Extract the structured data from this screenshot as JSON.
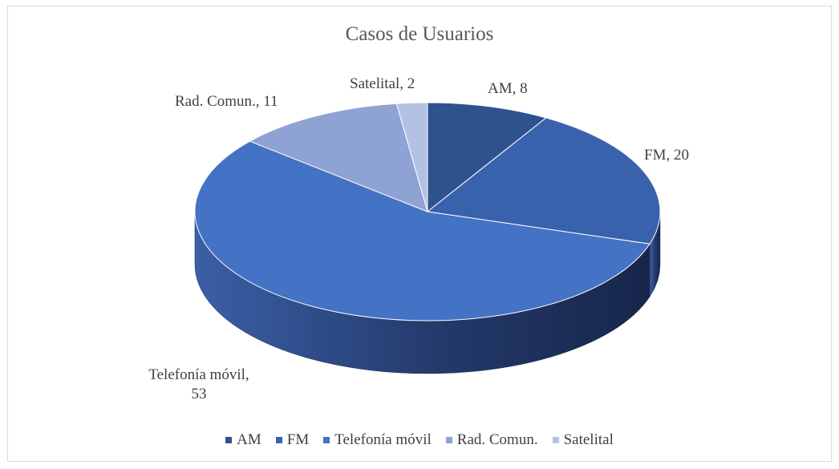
{
  "chart_data": {
    "type": "pie",
    "title": "Casos de Usuarios",
    "categories": [
      "AM",
      "FM",
      "Telefonía móvil",
      "Rad. Comun.",
      "Satelital"
    ],
    "values": [
      8,
      20,
      53,
      11,
      2
    ],
    "value_labels": [
      "AM, 8",
      "FM, 20",
      "Telefonía móvil, 53",
      "Rad. Comun., 11",
      "Satelital, 2"
    ],
    "colors": [
      "#2f528f",
      "#3962ad",
      "#4472c4",
      "#8fa2d4",
      "#b4c1e4"
    ],
    "legend": "bottom"
  }
}
